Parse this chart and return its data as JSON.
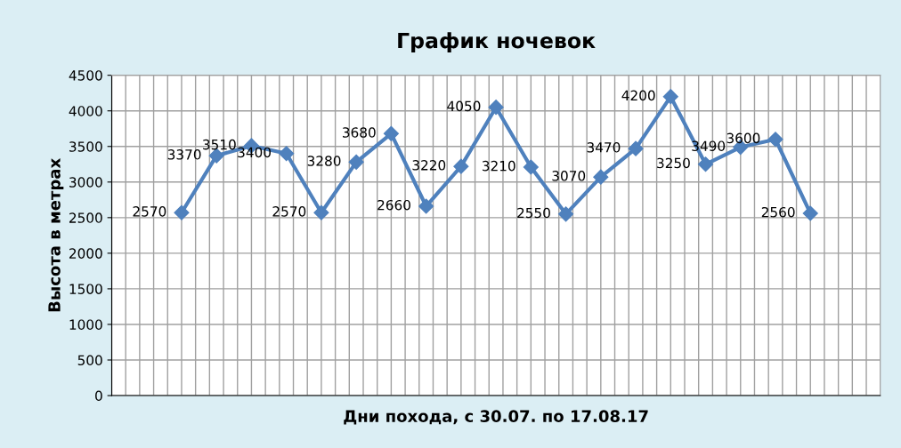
{
  "chart_data": {
    "type": "line",
    "title": "График ночевок",
    "xlabel": "Дни похода, с 30.07. по 17.08.17",
    "ylabel": "Высота в метрах",
    "categories": [
      null,
      null,
      null,
      null,
      null,
      null,
      null,
      null,
      null,
      null,
      null,
      null,
      null,
      null,
      null,
      null,
      null,
      null,
      null
    ],
    "series": [
      {
        "color": "#4f81bd",
        "values": [
          2570,
          3370,
          3510,
          3400,
          2570,
          3280,
          3680,
          2660,
          3220,
          4050,
          3210,
          2550,
          3070,
          3470,
          4200,
          3250,
          3490,
          3600,
          2560
        ]
      }
    ],
    "ylim": [
      0,
      4500
    ],
    "yticks": [
      0,
      500,
      1000,
      1500,
      2000,
      2500,
      3000,
      3500,
      4000,
      4500
    ],
    "grid": true,
    "marker": "diamond",
    "line_style": "solid",
    "data_labels": true,
    "legend": false
  }
}
